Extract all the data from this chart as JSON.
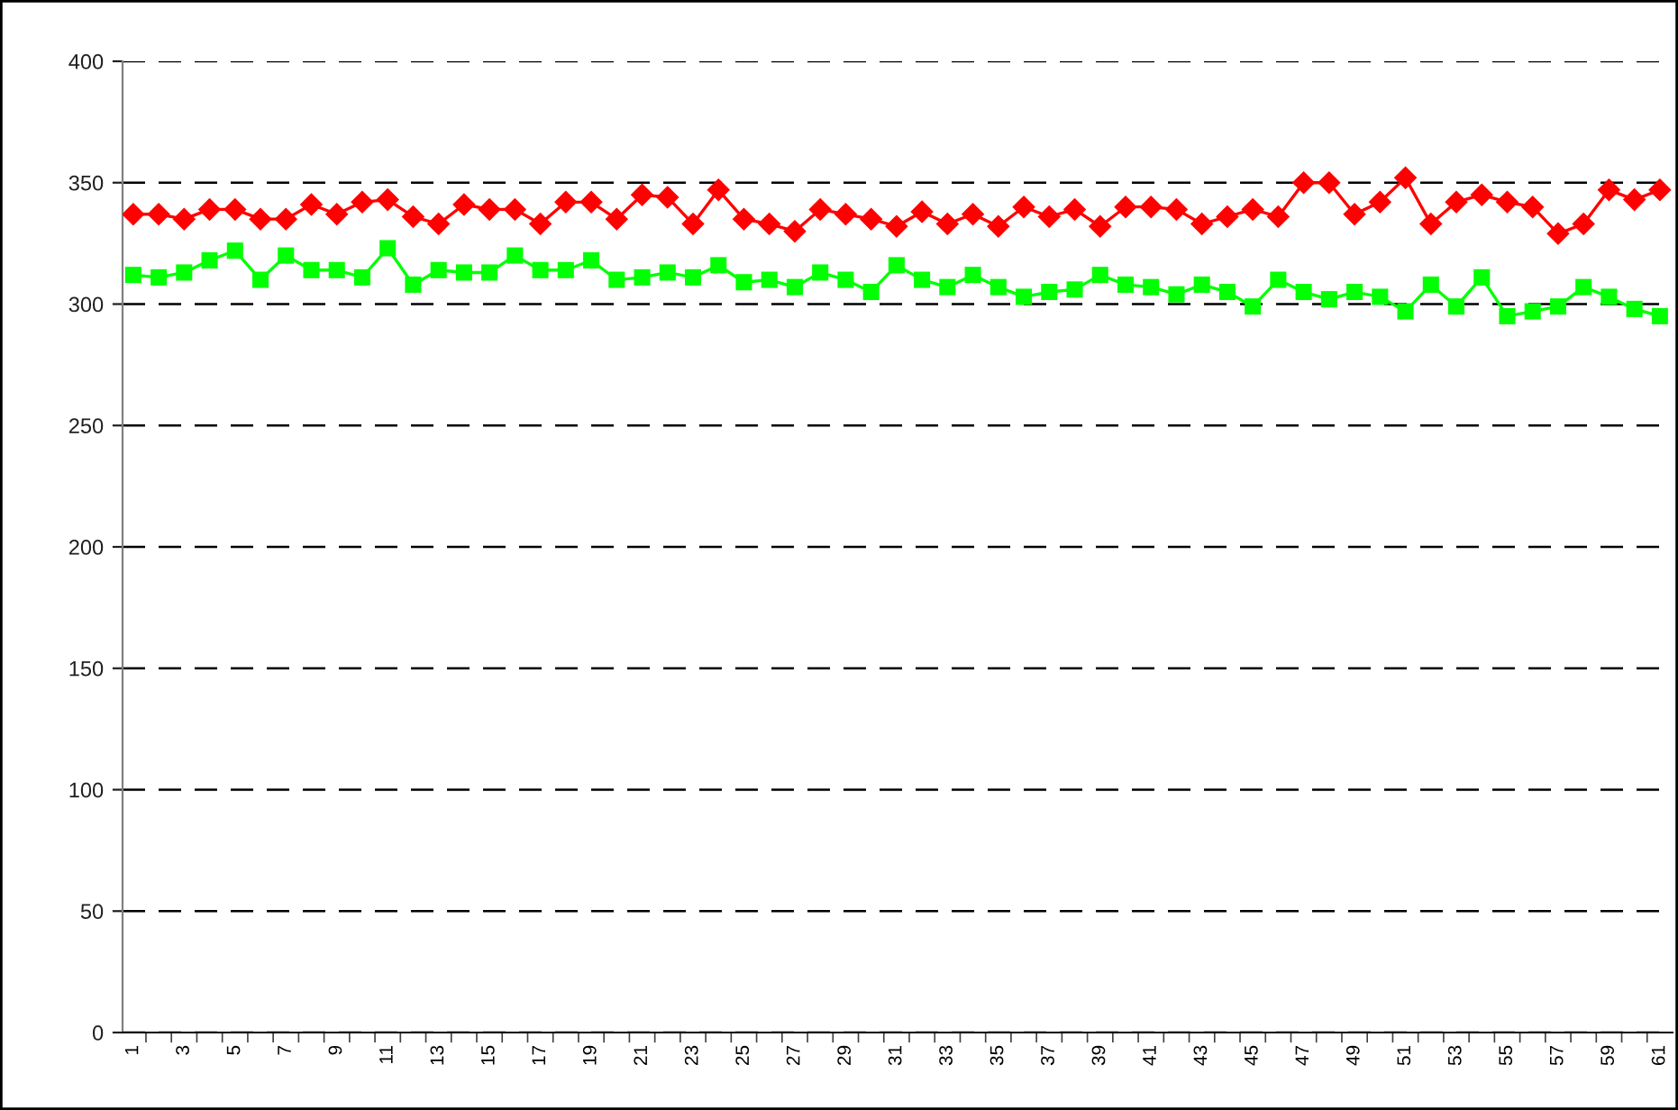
{
  "chart_data": {
    "type": "line",
    "categories": [
      "1",
      null,
      "3",
      null,
      "5",
      null,
      "7",
      null,
      "9",
      null,
      "11",
      null,
      "13",
      null,
      "15",
      null,
      "17",
      null,
      "19",
      null,
      "21",
      null,
      "23",
      null,
      "25",
      null,
      "27",
      null,
      "29",
      null,
      "31",
      null,
      "33",
      null,
      "35",
      null,
      "37",
      null,
      "39",
      null,
      "41",
      null,
      "43",
      null,
      "45",
      null,
      "47",
      null,
      "49",
      null,
      "51",
      null,
      "53",
      null,
      "55",
      null,
      "57",
      null,
      "59",
      null,
      "61"
    ],
    "series": [
      {
        "color": "#ff0000",
        "marker": "diamond",
        "values": [
          337,
          337,
          335,
          339,
          339,
          335,
          335,
          341,
          337,
          342,
          343,
          336,
          333,
          341,
          339,
          339,
          333,
          342,
          342,
          335,
          345,
          344,
          333,
          347,
          335,
          333,
          330,
          339,
          337,
          335,
          332,
          338,
          333,
          337,
          332,
          340,
          336,
          339,
          332,
          340,
          340,
          339,
          333,
          336,
          339,
          336,
          350,
          350,
          337,
          342,
          352,
          333,
          342,
          345,
          342,
          340,
          329,
          333,
          347,
          343,
          347
        ]
      },
      {
        "color": "#00ff00",
        "marker": "square",
        "values": [
          312,
          311,
          313,
          318,
          322,
          310,
          320,
          314,
          314,
          311,
          323,
          308,
          314,
          313,
          313,
          320,
          314,
          314,
          318,
          310,
          311,
          313,
          311,
          316,
          309,
          310,
          307,
          313,
          310,
          305,
          316,
          310,
          307,
          312,
          307,
          303,
          305,
          306,
          312,
          308,
          307,
          304,
          308,
          305,
          299,
          310,
          305,
          302,
          305,
          303,
          297,
          308,
          299,
          311,
          295,
          297,
          299,
          307,
          303,
          298,
          295
        ]
      }
    ],
    "ylim": [
      0,
      400
    ],
    "yticks": [
      0,
      50,
      100,
      150,
      200,
      250,
      300,
      350,
      400
    ],
    "grid": "y",
    "line_style": "solid"
  }
}
